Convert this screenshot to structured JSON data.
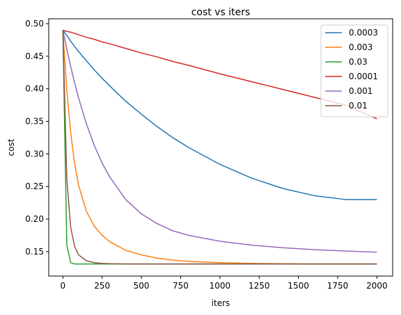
{
  "chart_data": {
    "type": "line",
    "title": "cost vs iters",
    "xlabel": "iters",
    "ylabel": "cost",
    "xlim": [
      -90,
      2100
    ],
    "ylim": [
      0.1125,
      0.5075
    ],
    "xticks": [
      0,
      250,
      500,
      750,
      1000,
      1250,
      1500,
      1750,
      2000
    ],
    "yticks": [
      0.15,
      0.2,
      0.25,
      0.3,
      0.35,
      0.4,
      0.45,
      0.5
    ],
    "ytick_labels": [
      "0.15",
      "0.20",
      "0.25",
      "0.30",
      "0.35",
      "0.40",
      "0.45",
      "0.50"
    ],
    "grid": false,
    "legend_position": "top-right",
    "x": [
      0,
      25,
      50,
      75,
      100,
      150,
      200,
      250,
      300,
      400,
      500,
      600,
      700,
      800,
      1000,
      1200,
      1400,
      1600,
      1800,
      2000
    ],
    "series": [
      {
        "name": "0.0003",
        "color": "#1f77b4",
        "values": [
          0.49,
          0.482,
          0.473,
          0.465,
          0.457,
          0.443,
          0.429,
          0.416,
          0.404,
          0.381,
          0.361,
          0.342,
          0.325,
          0.31,
          0.284,
          0.263,
          0.247,
          0.236,
          0.23,
          0.23
        ]
      },
      {
        "name": "0.003",
        "color": "#ff7f0e",
        "values": [
          0.49,
          0.398,
          0.332,
          0.285,
          0.252,
          0.212,
          0.189,
          0.175,
          0.165,
          0.152,
          0.145,
          0.14,
          0.137,
          0.135,
          0.133,
          0.132,
          0.1315,
          0.131,
          0.131,
          0.131
        ]
      },
      {
        "name": "0.03",
        "color": "#2ca02c",
        "values": [
          0.49,
          0.16,
          0.133,
          0.131,
          0.131,
          0.131,
          0.131,
          0.131,
          0.131,
          0.131,
          0.131,
          0.131,
          0.131,
          0.131,
          0.131,
          0.131,
          0.131,
          0.131,
          0.131,
          0.131
        ]
      },
      {
        "name": "0.0001",
        "color": "#d62728",
        "values": [
          0.49,
          0.488,
          0.487,
          0.485,
          0.483,
          0.479,
          0.476,
          0.472,
          0.469,
          0.462,
          0.455,
          0.449,
          0.442,
          0.436,
          0.423,
          0.411,
          0.399,
          0.387,
          0.375,
          0.354
        ]
      },
      {
        "name": "0.001",
        "color": "#9467bd",
        "values": [
          0.49,
          0.461,
          0.434,
          0.409,
          0.386,
          0.346,
          0.313,
          0.286,
          0.264,
          0.23,
          0.208,
          0.193,
          0.182,
          0.175,
          0.166,
          0.16,
          0.156,
          0.153,
          0.151,
          0.149
        ]
      },
      {
        "name": "0.01",
        "color": "#8c564b",
        "values": [
          0.49,
          0.262,
          0.187,
          0.158,
          0.145,
          0.136,
          0.133,
          0.132,
          0.1315,
          0.131,
          0.131,
          0.131,
          0.131,
          0.131,
          0.131,
          0.131,
          0.131,
          0.131,
          0.131,
          0.131
        ]
      }
    ]
  }
}
